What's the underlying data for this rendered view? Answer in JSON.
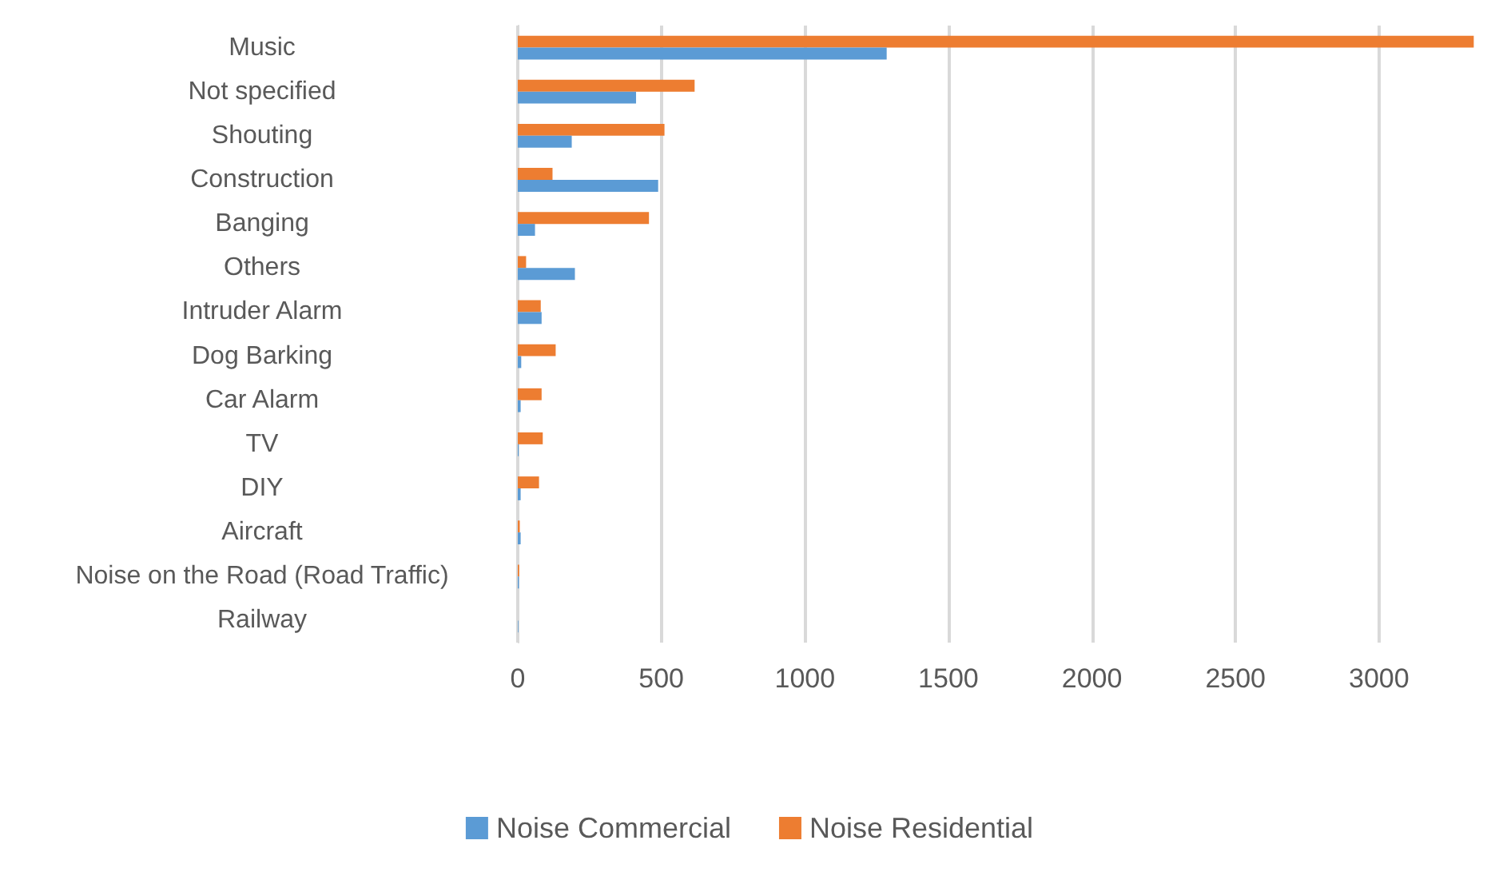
{
  "chart_data": {
    "type": "bar",
    "orientation": "horizontal",
    "categories": [
      "Music",
      "Not specified",
      "Shouting",
      "Construction",
      "Banging",
      "Others",
      "Intruder Alarm",
      "Dog Barking",
      "Car Alarm",
      "TV",
      "DIY",
      "Aircraft",
      "Noise on the Road (Road Traffic)",
      "Railway"
    ],
    "series": [
      {
        "name": "Noise Commercial",
        "color": "#5b9bd5",
        "values": [
          1285,
          412,
          188,
          489,
          60,
          199,
          83,
          12,
          10,
          3,
          10,
          10,
          4,
          2
        ]
      },
      {
        "name": "Noise Residential",
        "color": "#ed7d31",
        "values": [
          3330,
          616,
          511,
          121,
          457,
          29,
          80,
          132,
          83,
          87,
          74,
          7,
          5,
          0
        ]
      }
    ],
    "xlim": [
      0,
      3340
    ],
    "xticks": [
      0,
      500,
      1000,
      1500,
      2000,
      2500,
      3000
    ],
    "grid": "x",
    "legend": "bottom"
  }
}
